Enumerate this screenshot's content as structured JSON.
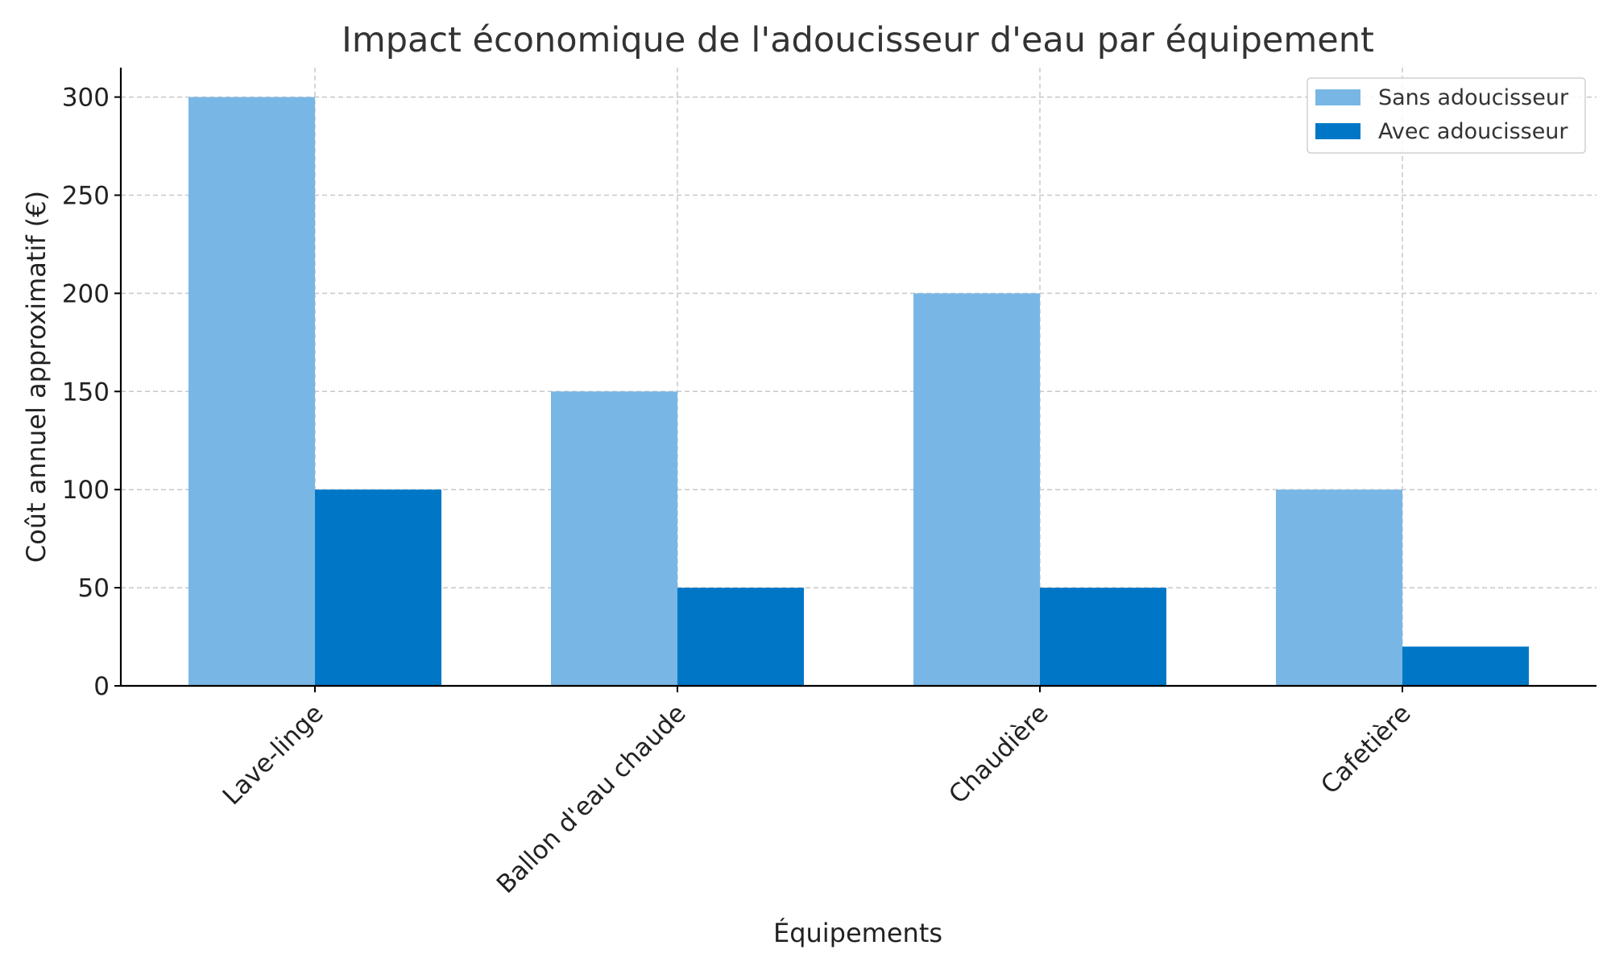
{
  "chart_data": {
    "type": "bar",
    "title": "Impact économique de l'adoucisseur d'eau par équipement",
    "xlabel": "Équipements",
    "ylabel": "Coût annuel approximatif (€)",
    "categories": [
      "Lave-linge",
      "Ballon d'eau chaude",
      "Chaudière",
      "Cafetière"
    ],
    "series": [
      {
        "name": "Sans adoucisseur",
        "values": [
          300,
          150,
          200,
          100
        ],
        "color": "#78b7e5"
      },
      {
        "name": "Avec adoucisseur",
        "values": [
          100,
          50,
          50,
          20
        ],
        "color": "#0077c6"
      }
    ],
    "ylim": [
      0,
      315
    ],
    "yticks": [
      0,
      50,
      100,
      150,
      200,
      250,
      300
    ],
    "grid": true,
    "legend_position": "top-right"
  }
}
